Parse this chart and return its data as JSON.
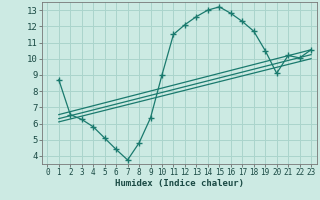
{
  "background_color": "#cceae3",
  "grid_color": "#aad4cc",
  "line_color": "#1a7a6e",
  "xlabel": "Humidex (Indice chaleur)",
  "xlim": [
    -0.5,
    23.5
  ],
  "ylim": [
    3.5,
    13.5
  ],
  "yticks": [
    4,
    5,
    6,
    7,
    8,
    9,
    10,
    11,
    12,
    13
  ],
  "xticks": [
    0,
    1,
    2,
    3,
    4,
    5,
    6,
    7,
    8,
    9,
    10,
    11,
    12,
    13,
    14,
    15,
    16,
    17,
    18,
    19,
    20,
    21,
    22,
    23
  ],
  "curve1_x": [
    1,
    2,
    3,
    4,
    5,
    6,
    7,
    8,
    9,
    10,
    11,
    12,
    13,
    14,
    15,
    16,
    17,
    18,
    19,
    20,
    21,
    22,
    23
  ],
  "curve1_y": [
    8.7,
    6.55,
    6.25,
    5.8,
    5.1,
    4.4,
    3.75,
    4.8,
    6.35,
    9.0,
    11.5,
    12.1,
    12.6,
    13.0,
    13.2,
    12.8,
    12.3,
    11.7,
    10.5,
    9.1,
    10.2,
    10.05,
    10.55
  ],
  "line2_x": [
    1,
    23
  ],
  "line2_y": [
    6.55,
    10.55
  ],
  "line3_x": [
    1,
    23
  ],
  "line3_y": [
    6.3,
    10.25
  ],
  "line4_x": [
    1,
    23
  ],
  "line4_y": [
    6.1,
    10.0
  ]
}
